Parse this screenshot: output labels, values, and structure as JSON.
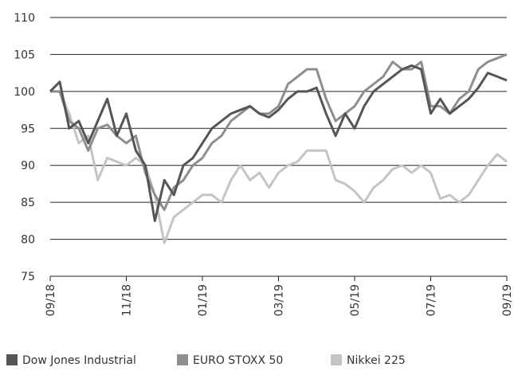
{
  "chart_data": {
    "type": "line",
    "x": [
      0,
      0.25,
      0.5,
      0.75,
      1,
      1.25,
      1.5,
      1.75,
      2,
      2.25,
      2.5,
      2.75,
      3,
      3.25,
      3.5,
      3.75,
      4,
      4.25,
      4.5,
      4.75,
      5,
      5.25,
      5.5,
      5.75,
      6,
      6.25,
      6.5,
      6.75,
      7,
      7.25,
      7.5,
      7.75,
      8,
      8.25,
      8.5,
      8.75,
      9,
      9.25,
      9.5,
      9.75,
      10,
      10.25,
      10.5,
      10.75,
      11,
      11.25,
      11.5,
      11.75,
      12
    ],
    "series": [
      {
        "name": "Dow Jones Industrial",
        "color": "#555555",
        "values": [
          100,
          101.3,
          95,
          96,
          93,
          96,
          99,
          94,
          97,
          92,
          90,
          82.5,
          88,
          86,
          90,
          91,
          93,
          95,
          96,
          97,
          97.5,
          98,
          97,
          96.5,
          97.5,
          99,
          100,
          100,
          100.5,
          97,
          94,
          97,
          95,
          98,
          100,
          101,
          102,
          103,
          103.5,
          103,
          97,
          99,
          97,
          98,
          99,
          100.5,
          102.5,
          102,
          101.5
        ]
      },
      {
        "name": "EURO STOXX 50",
        "color": "#8e8e8e",
        "values": [
          100,
          100,
          96,
          95,
          92,
          95,
          95.5,
          94,
          93,
          94,
          89,
          86,
          84,
          87,
          88,
          90,
          91,
          93,
          94,
          96,
          97,
          98,
          97,
          97,
          98,
          101,
          102,
          103,
          103,
          99,
          96,
          97,
          98,
          100,
          101,
          102,
          104,
          103,
          103,
          104,
          98,
          98,
          97,
          99,
          100,
          103,
          104,
          104.5,
          105
        ]
      },
      {
        "name": "Nikkei 225",
        "color": "#c4c4c4",
        "values": [
          100,
          100,
          97,
          93,
          94,
          88,
          91,
          90.5,
          90,
          91,
          90,
          86,
          79.5,
          83,
          84,
          85,
          86,
          86,
          85,
          88,
          90,
          88,
          89,
          87,
          89,
          90,
          90.5,
          92,
          92,
          92,
          88,
          87.5,
          86.5,
          85,
          87,
          88,
          89.5,
          90,
          89,
          90,
          89,
          85.5,
          86,
          85,
          86,
          88,
          90,
          91.5,
          90.5
        ]
      }
    ],
    "xlim": [
      0,
      12
    ],
    "xticks": [
      {
        "value": 0,
        "label": "09/18"
      },
      {
        "value": 2,
        "label": "11/18"
      },
      {
        "value": 4,
        "label": "01/19"
      },
      {
        "value": 6,
        "label": "03/19"
      },
      {
        "value": 8,
        "label": "05/19"
      },
      {
        "value": 10,
        "label": "07/19"
      },
      {
        "value": 12,
        "label": "09/19"
      }
    ],
    "ylim": [
      75,
      110
    ],
    "yticks": [
      75,
      80,
      85,
      90,
      95,
      100,
      105,
      110
    ],
    "grid": true
  }
}
